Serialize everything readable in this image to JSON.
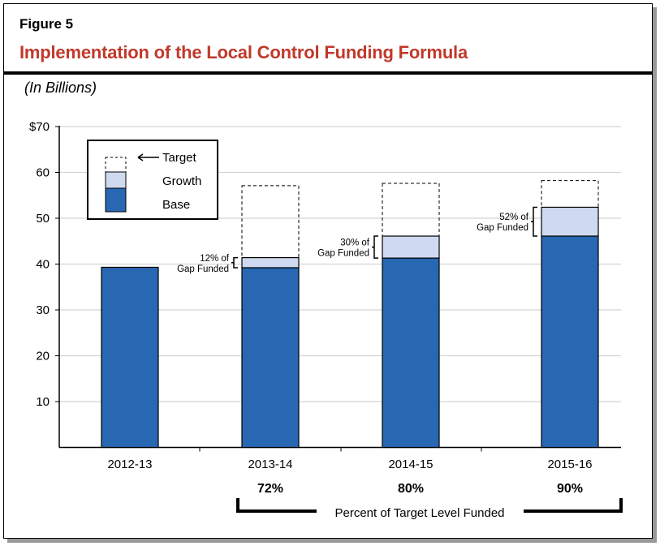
{
  "figure_label": "Figure 5",
  "chart_data": {
    "type": "bar",
    "title": "Implementation of the Local Control Funding Formula",
    "subtitle": "(In Billions)",
    "categories": [
      "2012-13",
      "2013-14",
      "2014-15",
      "2015-16"
    ],
    "series": [
      {
        "name": "Base",
        "values": [
          39.3,
          39.2,
          41.3,
          46.1
        ],
        "color": "#2867b2"
      },
      {
        "name": "Growth",
        "values": [
          0,
          2.2,
          4.8,
          6.3
        ],
        "color": "#cfd9f0"
      },
      {
        "name": "Target",
        "values": [
          null,
          57.1,
          57.6,
          58.2
        ],
        "style": "dashed outline"
      }
    ],
    "gap_labels": [
      null,
      [
        "12% of",
        "Gap Funded"
      ],
      [
        "30% of",
        "Gap Funded"
      ],
      [
        "52% of",
        "Gap Funded"
      ]
    ],
    "percent_funded": [
      null,
      "72%",
      "80%",
      "90%"
    ],
    "percent_funded_label": "Percent of Target Level Funded",
    "yticks": [
      "$70",
      "60",
      "50",
      "40",
      "30",
      "20",
      "10"
    ],
    "ytick_values": [
      70,
      60,
      50,
      40,
      30,
      20,
      10
    ],
    "ylim": [
      0,
      70
    ],
    "grid": true,
    "legend_position": "top-left"
  }
}
